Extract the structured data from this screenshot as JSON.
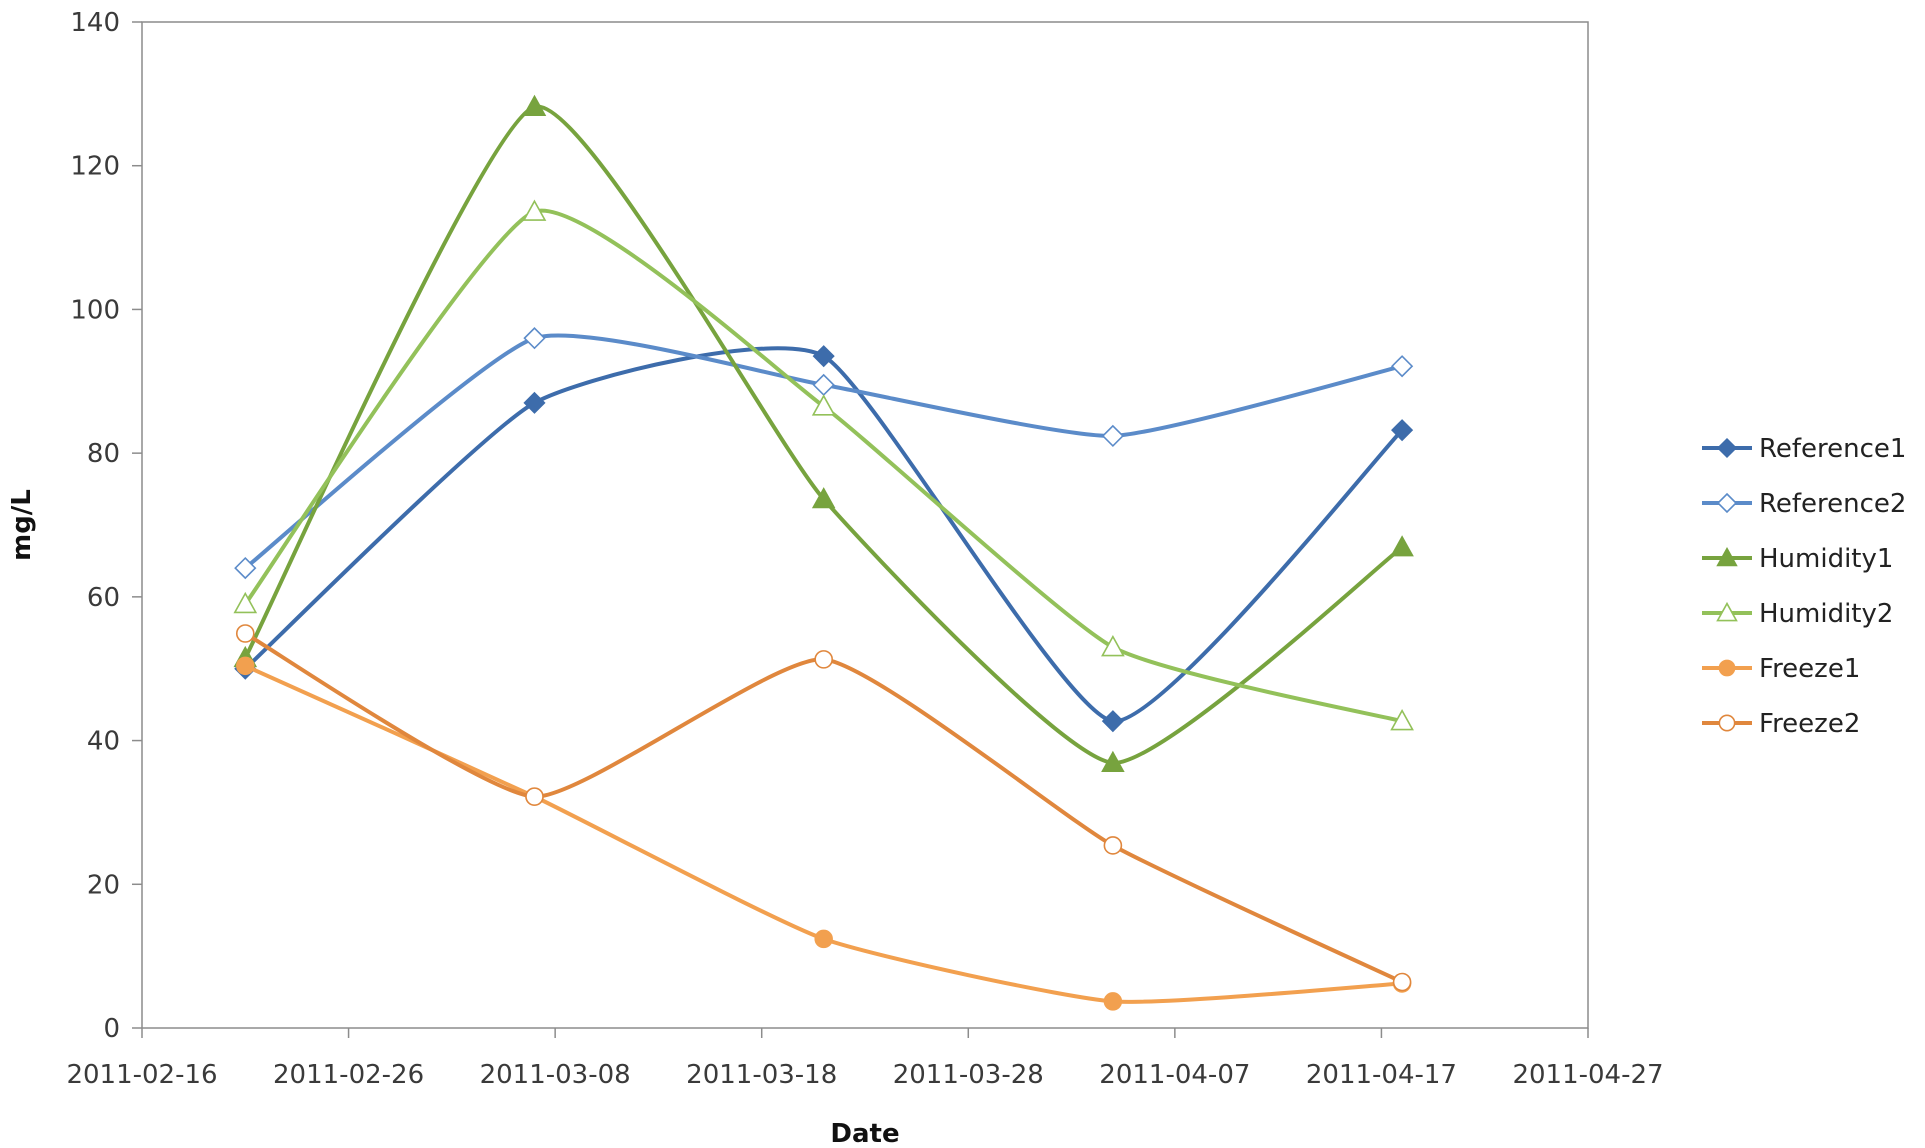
{
  "chart_data": {
    "type": "line",
    "title": "",
    "xlabel": "Date",
    "ylabel": "mg/L",
    "xlim": [
      "2011-02-16",
      "2011-04-27"
    ],
    "ylim": [
      0,
      140
    ],
    "x_ticks": [
      "2011-02-16",
      "2011-02-26",
      "2011-03-08",
      "2011-03-18",
      "2011-03-28",
      "2011-04-07",
      "2011-04-17",
      "2011-04-27"
    ],
    "y_ticks": [
      0,
      20,
      40,
      60,
      80,
      100,
      120,
      140
    ],
    "grid": false,
    "smooth": true,
    "legend_position": "right",
    "x": [
      "2011-02-21",
      "2011-03-07",
      "2011-03-21",
      "2011-04-04",
      "2011-04-18"
    ],
    "series": [
      {
        "name": "Reference1",
        "color": "#3d6cab",
        "marker": "diamond",
        "filled": true,
        "values": [
          50,
          87,
          93.5,
          42.7,
          83.2
        ]
      },
      {
        "name": "Reference2",
        "color": "#5b8bc9",
        "marker": "diamond",
        "filled": false,
        "values": [
          64,
          96,
          89.5,
          82.4,
          92.1
        ]
      },
      {
        "name": "Humidity1",
        "color": "#77a33e",
        "marker": "triangle",
        "filled": true,
        "values": [
          51.5,
          128.2,
          73.6,
          36.9,
          66.9
        ]
      },
      {
        "name": "Humidity2",
        "color": "#93c15a",
        "marker": "triangle",
        "filled": false,
        "values": [
          59,
          113.6,
          86.5,
          53,
          42.7
        ]
      },
      {
        "name": "Freeze1",
        "color": "#f2a04f",
        "marker": "circle",
        "filled": true,
        "values": [
          50.4,
          32.2,
          12.4,
          3.7,
          6.2
        ]
      },
      {
        "name": "Freeze2",
        "color": "#e0873d",
        "marker": "circle",
        "filled": false,
        "values": [
          54.9,
          32.2,
          51.3,
          25.4,
          6.4
        ]
      }
    ]
  }
}
